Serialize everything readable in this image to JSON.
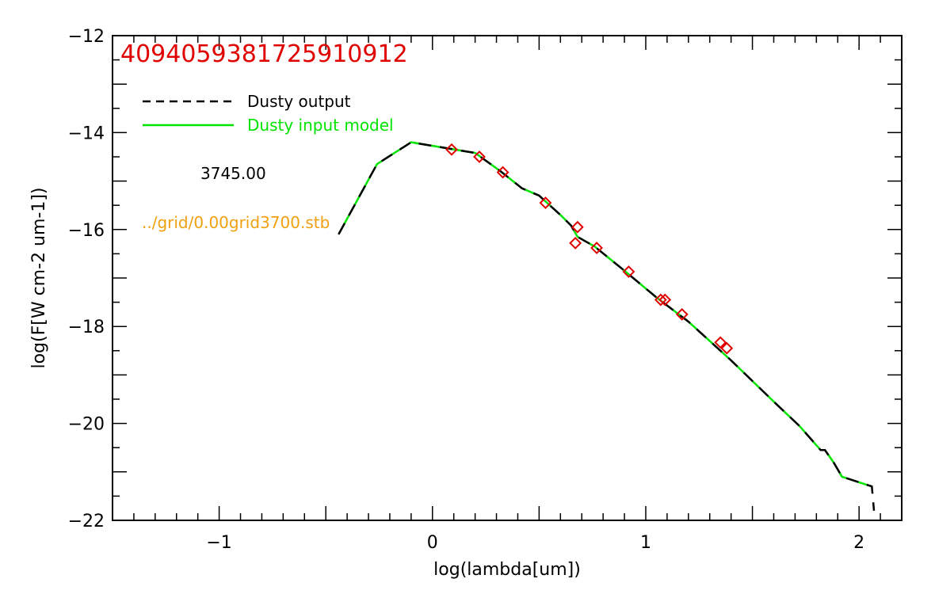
{
  "chart_data": {
    "type": "line",
    "title": "4094059381725910912",
    "xlabel": "log(lambda[um])",
    "ylabel": "log(F[W cm-2 um-1])",
    "xlim": [
      -1.5,
      2.2
    ],
    "ylim": [
      -22,
      -12
    ],
    "xticks": [
      -1,
      0,
      1,
      2
    ],
    "xtick_labels": [
      "−1",
      "0",
      "1",
      "2"
    ],
    "yticks": [
      -22,
      -20,
      -18,
      -16,
      -14,
      -12
    ],
    "ytick_labels": [
      "−22",
      "−20",
      "−18",
      "−16",
      "−14",
      "−12"
    ],
    "grid": false,
    "legend_position": "top-left",
    "series": [
      {
        "name": "Dusty output",
        "color": "#000000",
        "style": "dashed",
        "x": [
          -0.44,
          -0.26,
          -0.1,
          0.2,
          0.32,
          0.42,
          0.5,
          0.6,
          0.65,
          0.68,
          0.76,
          0.9,
          1.05,
          1.2,
          1.4,
          1.6,
          1.72,
          1.82,
          1.84,
          1.88,
          1.92,
          2.06,
          2.07
        ],
        "y": [
          -16.1,
          -14.65,
          -14.2,
          -14.42,
          -14.8,
          -15.15,
          -15.3,
          -15.7,
          -15.92,
          -16.15,
          -16.35,
          -16.85,
          -17.4,
          -17.9,
          -18.7,
          -19.55,
          -20.05,
          -20.55,
          -20.55,
          -20.8,
          -21.1,
          -21.3,
          -21.8
        ]
      },
      {
        "name": "Dusty input model",
        "color": "#00e400",
        "style": "solid",
        "x": [
          -0.44,
          -0.26,
          -0.1,
          0.2,
          0.32,
          0.42,
          0.5,
          0.6,
          0.65,
          0.68,
          0.76,
          0.9,
          1.05,
          1.2,
          1.4,
          1.6,
          1.72,
          1.82,
          1.84,
          1.88,
          1.92,
          2.06
        ],
        "y": [
          -16.1,
          -14.65,
          -14.2,
          -14.42,
          -14.8,
          -15.15,
          -15.3,
          -15.7,
          -15.92,
          -16.15,
          -16.35,
          -16.85,
          -17.4,
          -17.9,
          -18.7,
          -19.55,
          -20.05,
          -20.55,
          -20.55,
          -20.8,
          -21.1,
          -21.3
        ]
      },
      {
        "name": "",
        "color": "#e00000",
        "style": "diamond-markers",
        "x": [
          0.09,
          0.22,
          0.33,
          0.53,
          0.67,
          0.68,
          0.77,
          0.92,
          1.07,
          1.09,
          1.17,
          1.35,
          1.38
        ],
        "y": [
          -14.35,
          -14.5,
          -14.82,
          -15.45,
          -16.28,
          -15.95,
          -16.38,
          -16.87,
          -17.45,
          -17.45,
          -17.75,
          -18.33,
          -18.45
        ]
      }
    ],
    "annotations": [
      {
        "text": "3745.00",
        "color": "#000000"
      },
      {
        "text": "../grid/0.00grid3700.stb",
        "color": "#f0a010"
      }
    ]
  }
}
